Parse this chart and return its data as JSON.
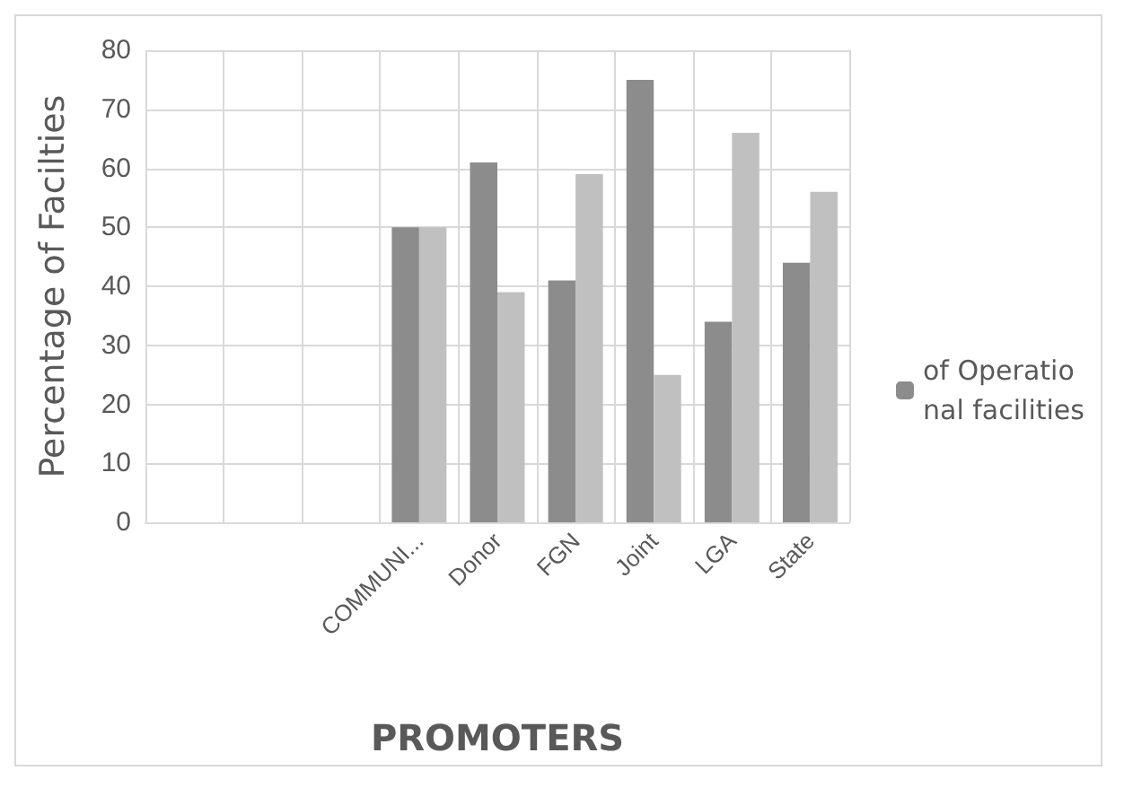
{
  "chart_data": {
    "type": "bar",
    "xlabel": "PROMOTERS",
    "ylabel": "Percentage of Facilties",
    "categories": [
      null,
      null,
      null,
      "COMMUNI...",
      "Donor",
      "FGN",
      "Joint",
      "LGA",
      "State"
    ],
    "series": [
      {
        "name": "of Operational facilities",
        "color": "#8c8c8c",
        "values": [
          null,
          null,
          null,
          50,
          61,
          41,
          75,
          34,
          44
        ]
      },
      {
        "color": "#c0c0c0",
        "values": [
          null,
          null,
          null,
          50,
          39,
          59,
          25,
          66,
          56
        ]
      }
    ],
    "ylim": [
      0,
      80
    ],
    "yticks": [
      0,
      10,
      20,
      30,
      40,
      50,
      60,
      70,
      80
    ],
    "grid": true,
    "legend": "right"
  }
}
